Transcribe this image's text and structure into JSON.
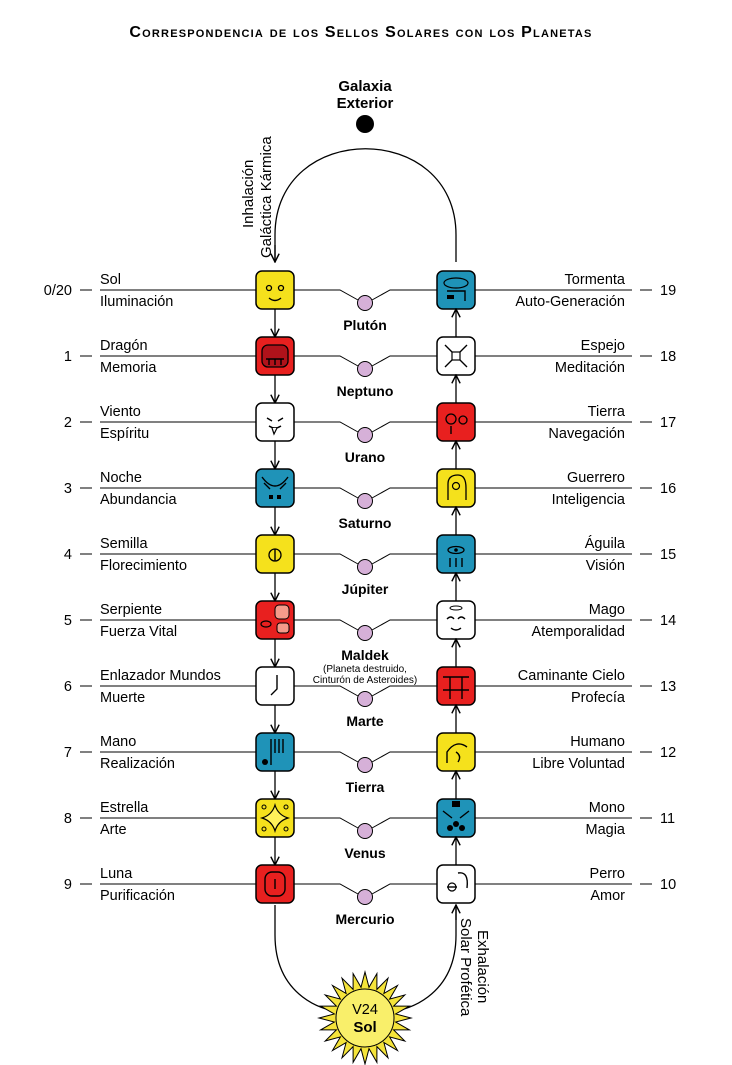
{
  "title": "Correspondencia de los Sellos Solares con los Planetas",
  "galaxia": {
    "line1": "Galaxia",
    "line2": "Exterior"
  },
  "inhalacion": {
    "line1": "Inhalación",
    "line2": "Galáctica Kármica"
  },
  "exhalacion": {
    "line1": "Exhalación",
    "line2": "Solar Profética"
  },
  "sun": {
    "line1": "V24",
    "line2": "Sol"
  },
  "maldek_note": {
    "line1": "(Planeta destruido,",
    "line2": "Cinturón de Asteroides)"
  },
  "colors": {
    "yellow": "#f5e11c",
    "red": "#e8201f",
    "blue": "#1f93b8",
    "white": "#ffffff",
    "planet": "#d6b0d8"
  },
  "rows": [
    {
      "left_num": "0/20",
      "left_top": "Sol",
      "left_bottom": "Iluminación",
      "left_color": "yellow",
      "left_icon": "sun-seal-icon",
      "planet": "Plutón",
      "right_num": "19",
      "right_top": "Tormenta",
      "right_bottom": "Auto-Generación",
      "right_color": "blue",
      "right_icon": "storm-seal-icon"
    },
    {
      "left_num": "1",
      "left_top": "Dragón",
      "left_bottom": "Memoria",
      "left_color": "red",
      "left_icon": "dragon-seal-icon",
      "planet": "Neptuno",
      "right_num": "18",
      "right_top": "Espejo",
      "right_bottom": "Meditación",
      "right_color": "white",
      "right_icon": "mirror-seal-icon"
    },
    {
      "left_num": "2",
      "left_top": "Viento",
      "left_bottom": "Espíritu",
      "left_color": "white",
      "left_icon": "wind-seal-icon",
      "planet": "Urano",
      "right_num": "17",
      "right_top": "Tierra",
      "right_bottom": "Navegación",
      "right_color": "red",
      "right_icon": "earth-seal-icon"
    },
    {
      "left_num": "3",
      "left_top": "Noche",
      "left_bottom": "Abundancia",
      "left_color": "blue",
      "left_icon": "night-seal-icon",
      "planet": "Saturno",
      "right_num": "16",
      "right_top": "Guerrero",
      "right_bottom": "Inteligencia",
      "right_color": "yellow",
      "right_icon": "warrior-seal-icon"
    },
    {
      "left_num": "4",
      "left_top": "Semilla",
      "left_bottom": "Florecimiento",
      "left_color": "yellow",
      "left_icon": "seed-seal-icon",
      "planet": "Júpiter",
      "right_num": "15",
      "right_top": "Águila",
      "right_bottom": "Visión",
      "right_color": "blue",
      "right_icon": "eagle-seal-icon"
    },
    {
      "left_num": "5",
      "left_top": "Serpiente",
      "left_bottom": "Fuerza Vital",
      "left_color": "red",
      "left_icon": "serpent-seal-icon",
      "planet": "Maldek",
      "right_num": "14",
      "right_top": "Mago",
      "right_bottom": "Atemporalidad",
      "right_color": "white",
      "right_icon": "wizard-seal-icon"
    },
    {
      "left_num": "6",
      "left_top": "Enlazador Mundos",
      "left_bottom": "Muerte",
      "left_color": "white",
      "left_icon": "worldbridger-seal-icon",
      "planet": "Marte",
      "right_num": "13",
      "right_top": "Caminante Cielo",
      "right_bottom": "Profecía",
      "right_color": "red",
      "right_icon": "skywalker-seal-icon"
    },
    {
      "left_num": "7",
      "left_top": "Mano",
      "left_bottom": "Realización",
      "left_color": "blue",
      "left_icon": "hand-seal-icon",
      "planet": "Tierra",
      "right_num": "12",
      "right_top": "Humano",
      "right_bottom": "Libre Voluntad",
      "right_color": "yellow",
      "right_icon": "human-seal-icon"
    },
    {
      "left_num": "8",
      "left_top": "Estrella",
      "left_bottom": "Arte",
      "left_color": "yellow",
      "left_icon": "star-seal-icon",
      "planet": "Venus",
      "right_num": "11",
      "right_top": "Mono",
      "right_bottom": "Magia",
      "right_color": "blue",
      "right_icon": "monkey-seal-icon"
    },
    {
      "left_num": "9",
      "left_top": "Luna",
      "left_bottom": "Purificación",
      "left_color": "red",
      "left_icon": "moon-seal-icon",
      "planet": "Mercurio",
      "right_num": "10",
      "right_top": "Perro",
      "right_bottom": "Amor",
      "right_color": "white",
      "right_icon": "dog-seal-icon"
    }
  ]
}
